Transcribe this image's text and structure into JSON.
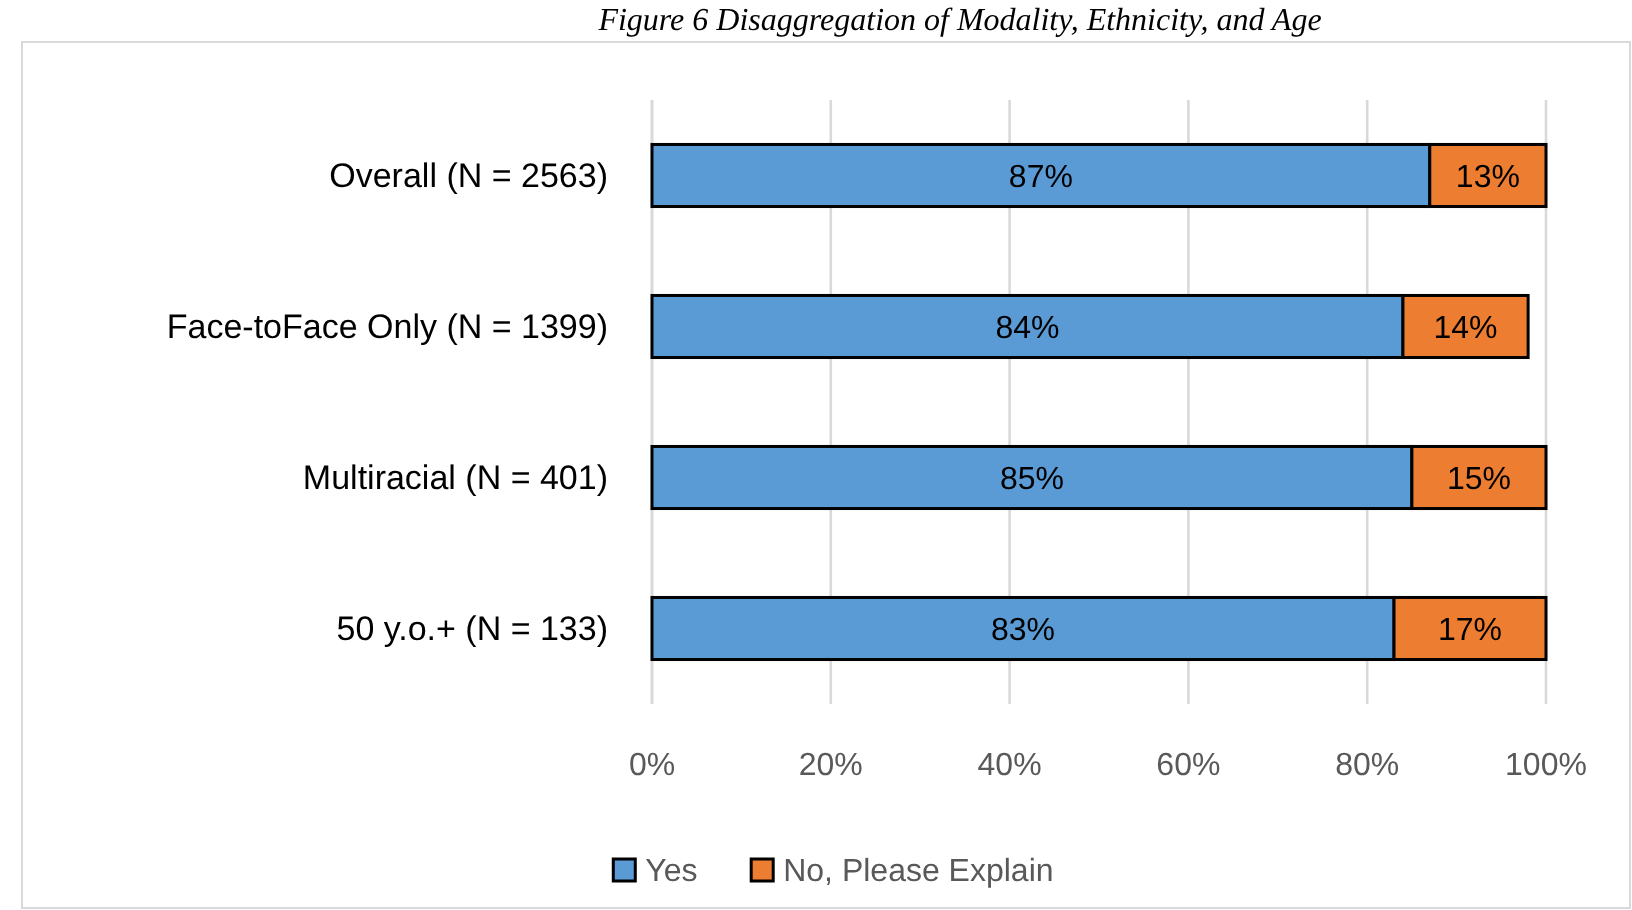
{
  "chart_data": {
    "type": "bar",
    "title": "Figure 6 Disaggregation of Modality, Ethnicity, and Age",
    "orientation": "horizontal",
    "stacked": true,
    "categories": [
      "Overall (N = 2563)",
      "Face-toFace Only (N = 1399)",
      "Multiracial (N = 401)",
      "50 y.o.+ (N = 133)"
    ],
    "series": [
      {
        "name": "Yes",
        "color": "#5b9bd5",
        "values": [
          87,
          84,
          85,
          83
        ],
        "value_labels": [
          "87%",
          "84%",
          "85%",
          "83%"
        ]
      },
      {
        "name": "No, Please Explain",
        "color": "#ed7d31",
        "values": [
          13,
          14,
          15,
          17
        ],
        "value_labels": [
          "13%",
          "14%",
          "15%",
          "17%"
        ]
      }
    ],
    "xlim": [
      0,
      100
    ],
    "xticks": [
      {
        "value": 0,
        "label": "0%"
      },
      {
        "value": 20,
        "label": "20%"
      },
      {
        "value": 40,
        "label": "40%"
      },
      {
        "value": 60,
        "label": "60%"
      },
      {
        "value": 80,
        "label": "80%"
      },
      {
        "value": 100,
        "label": "100%"
      }
    ],
    "grid": "x",
    "legend": "bottom"
  }
}
